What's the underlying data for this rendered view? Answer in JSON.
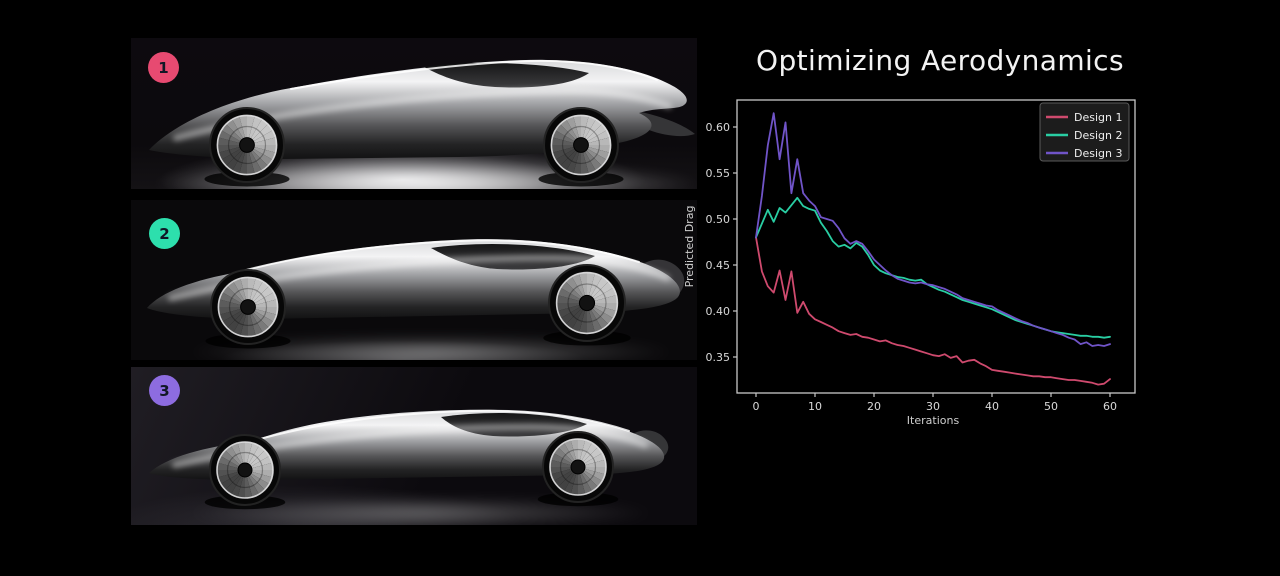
{
  "title": "Optimizing Aerodynamics",
  "designs": [
    {
      "number": "1",
      "badge_color": "#e74a71"
    },
    {
      "number": "2",
      "badge_color": "#2ddfad"
    },
    {
      "number": "3",
      "badge_color": "#8d6ce0"
    }
  ],
  "chart_data": {
    "type": "line",
    "title": "",
    "xlabel": "Iterations",
    "ylabel": "Predicted Drag",
    "xlim": [
      -3.2,
      64.2
    ],
    "ylim": [
      0.311,
      0.629
    ],
    "xticks": [
      0,
      10,
      20,
      30,
      40,
      50,
      60
    ],
    "yticks": [
      0.35,
      0.4,
      0.45,
      0.5,
      0.55,
      0.6
    ],
    "grid": false,
    "legend_position": "upper right",
    "background": "#000000",
    "axis_color": "#c8c8c8",
    "x": [
      0,
      1,
      2,
      3,
      4,
      5,
      6,
      7,
      8,
      9,
      10,
      11,
      12,
      13,
      14,
      15,
      16,
      17,
      18,
      19,
      20,
      21,
      22,
      23,
      24,
      25,
      26,
      27,
      28,
      29,
      30,
      31,
      32,
      33,
      34,
      35,
      36,
      37,
      38,
      39,
      40,
      41,
      42,
      43,
      44,
      45,
      46,
      47,
      48,
      49,
      50,
      51,
      52,
      53,
      54,
      55,
      56,
      57,
      58,
      59,
      60
    ],
    "series": [
      {
        "name": "Design 1",
        "color": "#cf4a6e",
        "values": [
          0.48,
          0.443,
          0.427,
          0.42,
          0.444,
          0.412,
          0.443,
          0.398,
          0.41,
          0.397,
          0.391,
          0.388,
          0.385,
          0.382,
          0.378,
          0.376,
          0.374,
          0.375,
          0.372,
          0.371,
          0.369,
          0.367,
          0.368,
          0.365,
          0.363,
          0.362,
          0.36,
          0.358,
          0.356,
          0.354,
          0.352,
          0.351,
          0.353,
          0.349,
          0.351,
          0.344,
          0.346,
          0.347,
          0.343,
          0.34,
          0.336,
          0.335,
          0.334,
          0.333,
          0.332,
          0.331,
          0.33,
          0.329,
          0.329,
          0.328,
          0.328,
          0.327,
          0.326,
          0.325,
          0.325,
          0.324,
          0.323,
          0.322,
          0.32,
          0.321,
          0.326
        ]
      },
      {
        "name": "Design 2",
        "color": "#29cea3",
        "values": [
          0.48,
          0.495,
          0.51,
          0.497,
          0.512,
          0.507,
          0.515,
          0.523,
          0.514,
          0.511,
          0.509,
          0.496,
          0.487,
          0.476,
          0.47,
          0.472,
          0.468,
          0.474,
          0.47,
          0.461,
          0.45,
          0.444,
          0.441,
          0.439,
          0.437,
          0.436,
          0.434,
          0.433,
          0.434,
          0.429,
          0.426,
          0.423,
          0.421,
          0.418,
          0.415,
          0.412,
          0.41,
          0.408,
          0.406,
          0.404,
          0.402,
          0.399,
          0.396,
          0.393,
          0.39,
          0.388,
          0.386,
          0.384,
          0.382,
          0.38,
          0.378,
          0.377,
          0.376,
          0.375,
          0.374,
          0.373,
          0.373,
          0.372,
          0.372,
          0.371,
          0.372
        ]
      },
      {
        "name": "Design 3",
        "color": "#7054c8",
        "values": [
          0.48,
          0.525,
          0.58,
          0.615,
          0.565,
          0.605,
          0.528,
          0.565,
          0.528,
          0.52,
          0.514,
          0.502,
          0.5,
          0.498,
          0.49,
          0.479,
          0.473,
          0.476,
          0.473,
          0.465,
          0.456,
          0.45,
          0.444,
          0.439,
          0.435,
          0.433,
          0.431,
          0.43,
          0.431,
          0.429,
          0.428,
          0.426,
          0.424,
          0.421,
          0.418,
          0.414,
          0.412,
          0.41,
          0.408,
          0.406,
          0.405,
          0.401,
          0.398,
          0.395,
          0.392,
          0.389,
          0.387,
          0.384,
          0.382,
          0.38,
          0.378,
          0.376,
          0.374,
          0.371,
          0.369,
          0.364,
          0.366,
          0.362,
          0.363,
          0.362,
          0.364
        ]
      }
    ]
  }
}
